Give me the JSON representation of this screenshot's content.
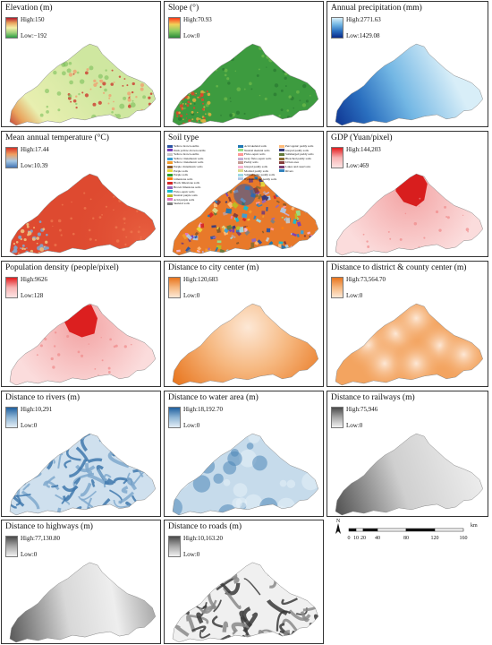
{
  "panels": [
    {
      "id": "elevation",
      "title": "Elevation (m)",
      "high": "High:150",
      "low": "Low:−192",
      "ramp": [
        "#b2182b",
        "#e9a35c",
        "#f6f0a8",
        "#9fd07c",
        "#2e9e46"
      ],
      "style": "elevation"
    },
    {
      "id": "slope",
      "title": "Slope (°)",
      "high": "High:70.93",
      "low": "Low:0",
      "ramp": [
        "#ff3a1a",
        "#f2d25a",
        "#8ccc62",
        "#2d8d3a"
      ],
      "style": "slope"
    },
    {
      "id": "precip",
      "title": "Annual precipitation (mm)",
      "high": "High:2771.63",
      "low": "Low:1429.08",
      "ramp": [
        "#d8eef8",
        "#73b7e4",
        "#2a6fbf",
        "#0a2a8a"
      ],
      "style": "precip"
    },
    {
      "id": "temp",
      "title": "Mean annual temperature (°C)",
      "high": "High:17.44",
      "low": "Low:10.39",
      "ramp": [
        "#d73027",
        "#f0a060",
        "#a6c8e4",
        "#4575b4"
      ],
      "style": "temp"
    },
    {
      "id": "soil",
      "title": "Soil type",
      "high": "",
      "low": "",
      "ramp": [],
      "style": "soil"
    },
    {
      "id": "gdp",
      "title": "GDP (Yuan/pixel)",
      "high": "High:144,203",
      "low": "Low:469",
      "ramp": [
        "#e31a1c",
        "#f7b3b3",
        "#fde4e4"
      ],
      "style": "gdp"
    },
    {
      "id": "pop",
      "title": "Population density (people/pixel)",
      "high": "High:9626",
      "low": "Low:128",
      "ramp": [
        "#e31a1c",
        "#f7b3b3",
        "#fde4e4"
      ],
      "style": "pop"
    },
    {
      "id": "city",
      "title": "Distance to city center (m)",
      "high": "High:120,683",
      "low": "Low:0",
      "ramp": [
        "#e8741c",
        "#f6b880",
        "#fde8d6"
      ],
      "style": "city"
    },
    {
      "id": "county",
      "title": "Distance to district & county center (m)",
      "high": "High:73,564.70",
      "low": "Low:0",
      "ramp": [
        "#e8741c",
        "#f6b880",
        "#fde8d6"
      ],
      "style": "county"
    },
    {
      "id": "rivers",
      "title": "Distance to rivers (m)",
      "high": "High:10,291",
      "low": "Low:0",
      "ramp": [
        "#1f5f9e",
        "#8fb6d6",
        "#e4eef6"
      ],
      "style": "rivers"
    },
    {
      "id": "water",
      "title": "Distance to water area (m)",
      "high": "High:18,192.70",
      "low": "Low:0",
      "ramp": [
        "#1f5f9e",
        "#8fb6d6",
        "#e4eef6"
      ],
      "style": "water"
    },
    {
      "id": "rail",
      "title": "Distance to railways (m)",
      "high": "High:75,946",
      "low": "Low:0",
      "ramp": [
        "#4a4a4a",
        "#a8a8a8",
        "#f2f2f2"
      ],
      "style": "rail"
    },
    {
      "id": "highway",
      "title": "Distance to highways (m)",
      "high": "High:77,130.80",
      "low": "Low:0",
      "ramp": [
        "#4a4a4a",
        "#a8a8a8",
        "#f2f2f2"
      ],
      "style": "highway"
    },
    {
      "id": "roads",
      "title": "Distance to roads (m)",
      "high": "High:10,163.20",
      "low": "Low:0",
      "ramp": [
        "#4a4a4a",
        "#a8a8a8",
        "#f2f2f2"
      ],
      "style": "roads"
    }
  ],
  "soil_legend": {
    "left": [
      "Yellow-brown earths",
      "Dark yellow-brown earths",
      "Yellow-brown earths",
      "Yellow cinnamonic soils",
      "Yellow cinnamonic soils",
      "Purple cinnamonic soils",
      "Purple soils",
      "Purple soils",
      "Limestone soils",
      "Black limestone soils",
      "Brown limestone soils",
      "Fluvo-aquic soils",
      "Neutral purple soils",
      "Acid purple soils",
      "Skeletal soils"
    ],
    "mid": [
      "Acid skeletal soils",
      "Neutral skeletal soils",
      "Fluvo-aquic soils",
      "Gray fluvo-aquic soils",
      "Paddy soils",
      "Gleyed paddy soils",
      "Mottled paddy soils",
      "Submergenic paddy soils",
      "Hydromorphic paddy soils"
    ],
    "right": [
      "Percogenic paddy soils",
      "Gleyed paddy soils",
      "Submerged paddy soils",
      "Bleached paddy soils",
      "Urban area",
      "Lakes and reservoirs",
      "Rivers"
    ],
    "colors": [
      "#2b54a3",
      "#7a3fb8",
      "#c8c8c8",
      "#38a0d8",
      "#f29b2c",
      "#8c5a2b",
      "#e8d83a",
      "#2ca02c",
      "#ff7f0e",
      "#d62728",
      "#9467bd",
      "#17becf",
      "#bcbd22",
      "#e377c2",
      "#7f7f7f",
      "#1f77b4",
      "#98df8a",
      "#ff9896",
      "#c5b0d5",
      "#c49c94",
      "#f7b6d2",
      "#dbdb8d",
      "#9edae5",
      "#aec7e8",
      "#ffbb78",
      "#393b79",
      "#637939",
      "#8c6d31",
      "#843c39",
      "#7b4173",
      "#3182bd"
    ]
  },
  "scale": {
    "north": "N",
    "ticks": [
      "0",
      "10",
      "20",
      "40",
      "80",
      "120",
      "160"
    ],
    "unit": "km"
  }
}
